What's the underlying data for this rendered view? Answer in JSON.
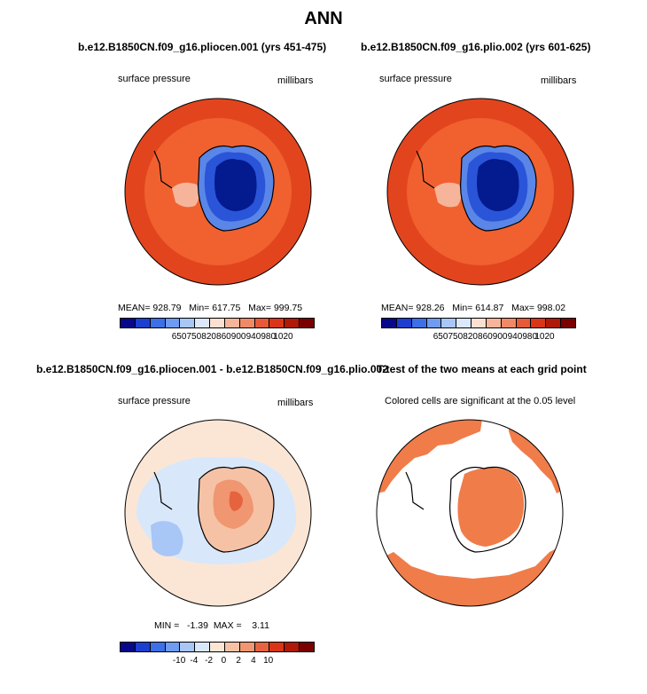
{
  "title": "ANN",
  "panels": [
    {
      "title": "b.e12.B1850CN.f09_g16.pliocen.001 (yrs 451-475)",
      "left_label": "surface pressure",
      "right_label": "millibars",
      "stats": "MEAN= 928.79   Min= 617.75   Max= 999.75"
    },
    {
      "title": "b.e12.B1850CN.f09_g16.plio.002 (yrs 601-625)",
      "left_label": "surface pressure",
      "right_label": "millibars",
      "stats": "MEAN= 928.26   Min= 614.87   Max= 998.02"
    },
    {
      "title": "b.e12.B1850CN.f09_g16.pliocen.001 - b.e12.B1850CN.f09_g16.plio.002",
      "left_label": "surface pressure",
      "right_label": "millibars",
      "stats": "MIN =   -1.39  MAX =    3.11"
    },
    {
      "title": "T-test of the two means at each grid point",
      "left_label": "Colored cells are significant at the 0.05 level"
    }
  ],
  "colorbar_abs": {
    "colors": [
      "#08088a",
      "#1c3fd0",
      "#3d6fe6",
      "#6f9bf0",
      "#a8c6f6",
      "#dbe7fb",
      "#fbe0d2",
      "#f6b59a",
      "#f08a66",
      "#e65a3a",
      "#d93618",
      "#b01808",
      "#7a0000"
    ],
    "labels": [
      "650",
      "750",
      "820",
      "860",
      "900",
      "940",
      "980",
      "1020"
    ]
  },
  "colorbar_diff": {
    "colors": [
      "#08088a",
      "#1c3fd0",
      "#3d6fe6",
      "#6f9bf0",
      "#a8c6f6",
      "#d8e8fa",
      "#fbe6d6",
      "#f6c2a6",
      "#f09670",
      "#e66340",
      "#d93618",
      "#b01808",
      "#7a0000"
    ],
    "labels": [
      "-10",
      "-4",
      "-2",
      "0",
      "2",
      "4",
      "10"
    ]
  },
  "map_colors": {
    "outer_ring": "#e2451e",
    "mid_ring": "#f0612f",
    "antarctica_high": "#041a8f",
    "antarctica_mid": "#2a55d8",
    "diff_bg": "#fbe6d6",
    "diff_blue": "#d8e8fa",
    "diff_strong_blue": "#a8c6f6",
    "diff_pos": "#f6b59a",
    "diff_pos_strong": "#f08a66",
    "ttest_fill": "#f07c4a"
  }
}
